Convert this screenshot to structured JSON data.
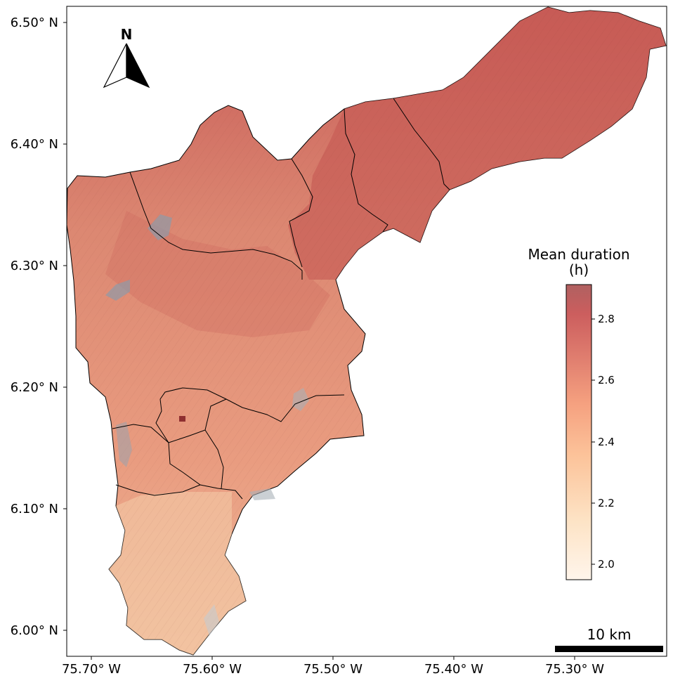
{
  "map": {
    "y_ticks": [
      "6.50° N",
      "6.40° N",
      "6.30° N",
      "6.20° N",
      "6.10° N",
      "6.00° N"
    ],
    "x_ticks": [
      "75.70° W",
      "75.60° W",
      "75.50° W",
      "75.40° W",
      "75.30° W"
    ],
    "north_arrow_label": "N",
    "scale_bar_label": "10 km",
    "legend": {
      "title_line1": "Mean duration",
      "title_line2": "(h)",
      "ticks": [
        "2.8",
        "2.6",
        "2.4",
        "2.2",
        "2.0"
      ],
      "range": [
        1.95,
        2.92
      ],
      "colormap": [
        "#fff5eb",
        "#fde3c5",
        "#fcc39a",
        "#f5a07f",
        "#e07e6f",
        "#cc5e5e",
        "#b06060"
      ]
    },
    "colors": {
      "north_region": "#c65a55",
      "central_region": "#df8a70",
      "south_region": "#eeae8e",
      "boundary": "#000000"
    }
  }
}
